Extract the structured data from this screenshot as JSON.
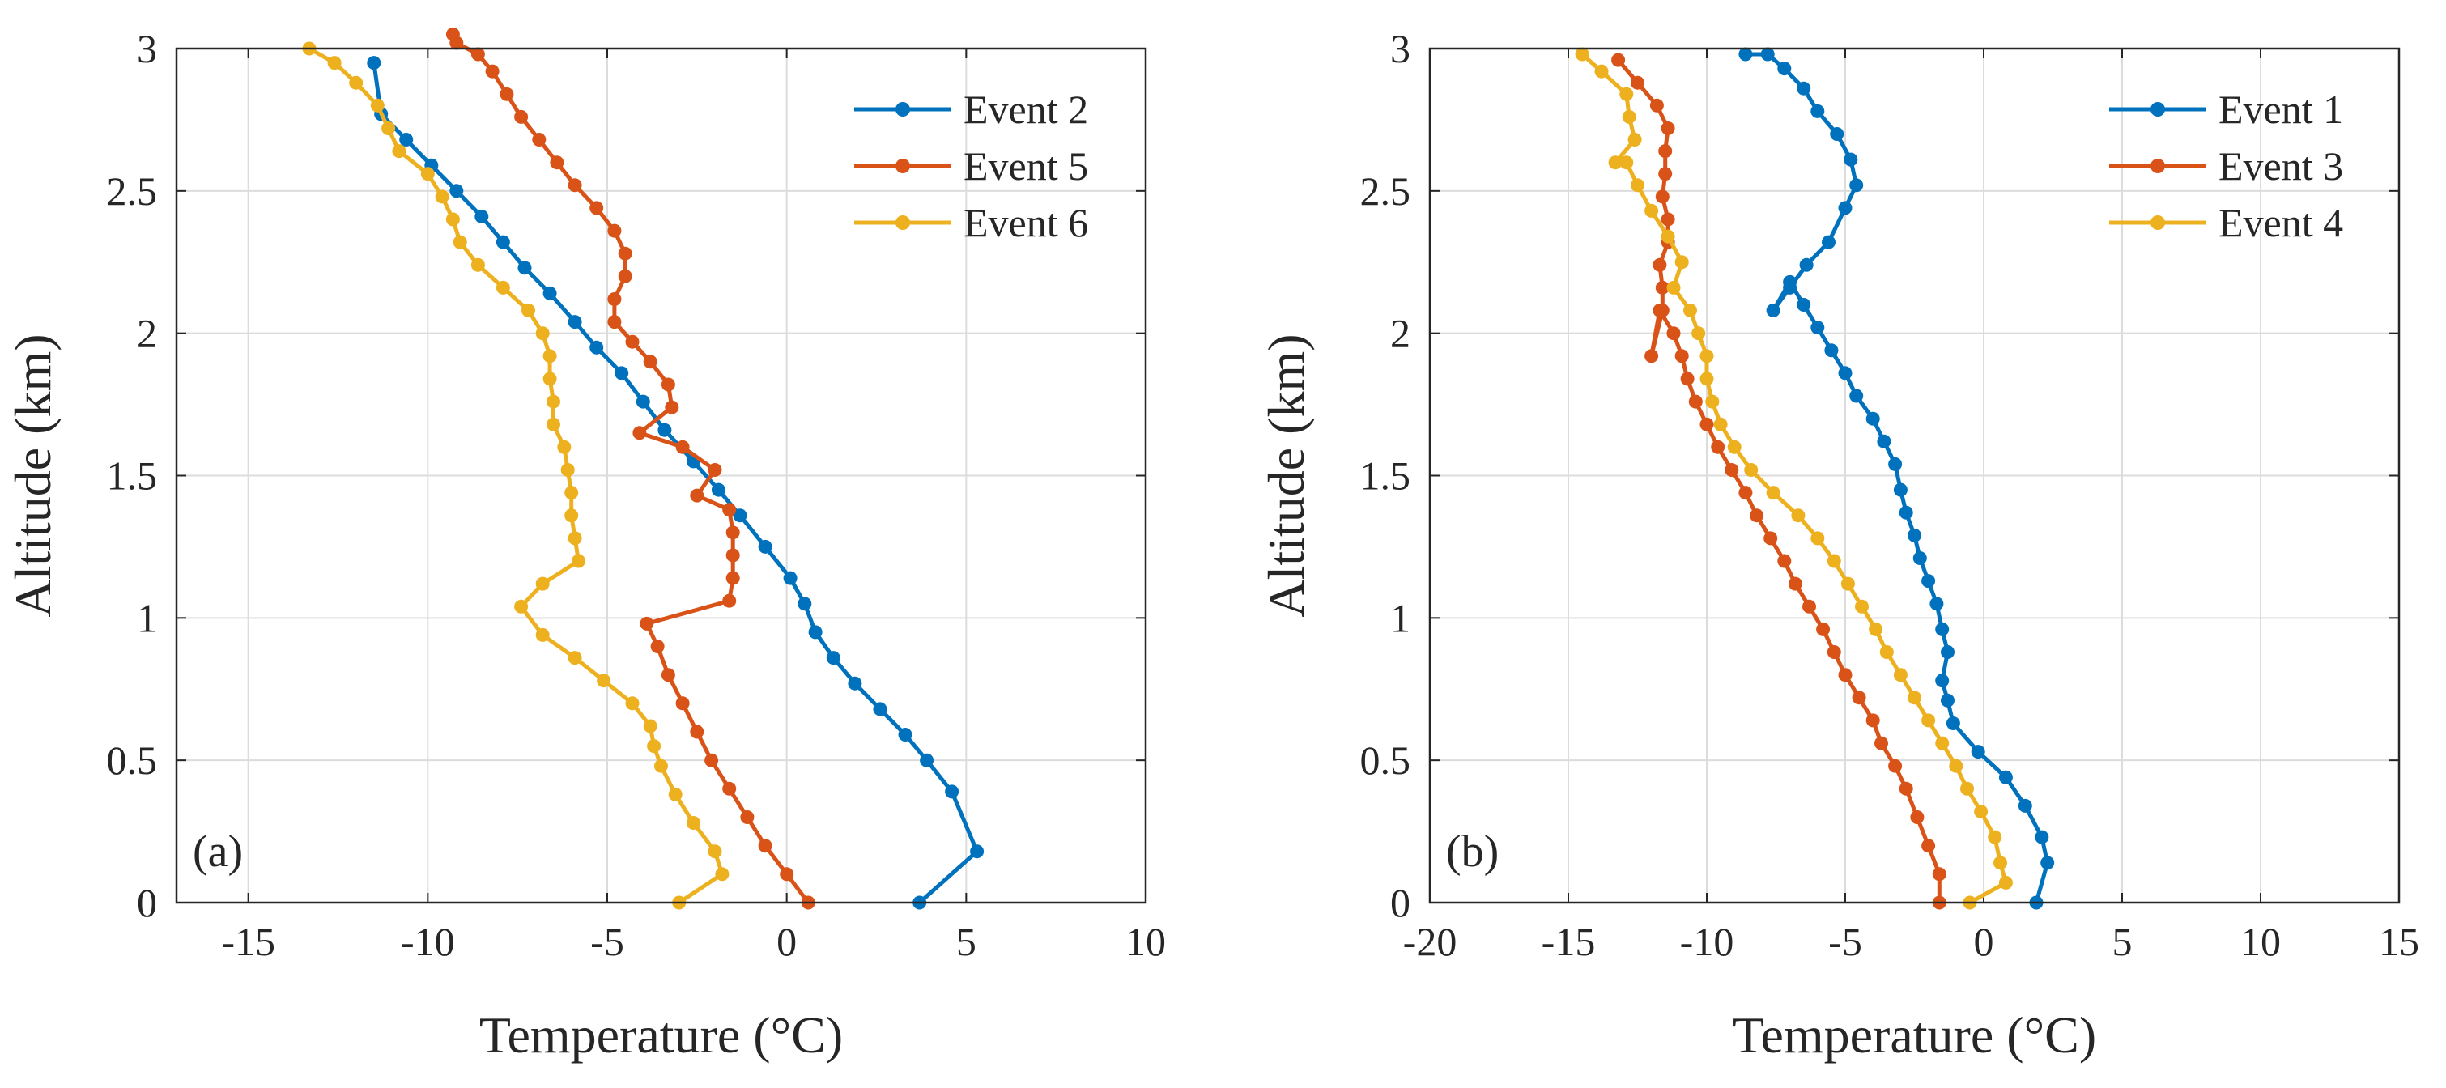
{
  "chart_data": [
    {
      "type": "line",
      "panel_label": "(a)",
      "xlabel": "Temperature (°C)",
      "ylabel": "Altitude (km)",
      "xlim": [
        -17,
        10
      ],
      "ylim": [
        0,
        3
      ],
      "xticks": [
        -15,
        -10,
        -5,
        0,
        5,
        10
      ],
      "xtick_labels": [
        "-15",
        "-10",
        "-5",
        "0",
        "5",
        "10"
      ],
      "yticks": [
        0,
        0.5,
        1,
        1.5,
        2,
        2.5,
        3
      ],
      "ytick_labels": [
        "0",
        "0.5",
        "1",
        "1.5",
        "2",
        "2.5",
        "3"
      ],
      "grid": true,
      "legend_position": "top-right",
      "series": [
        {
          "name": "Event 2",
          "color": "#0072BD",
          "x": [
            3.7,
            5.3,
            4.6,
            3.9,
            3.3,
            2.6,
            1.9,
            1.3,
            0.8,
            0.5,
            0.1,
            -0.6,
            -1.3,
            -1.9,
            -2.6,
            -3.4,
            -4.0,
            -4.6,
            -5.3,
            -5.9,
            -6.6,
            -7.3,
            -7.9,
            -8.5,
            -9.2,
            -9.9,
            -10.6,
            -11.3,
            -11.5
          ],
          "y": [
            0,
            0.18,
            0.39,
            0.5,
            0.59,
            0.68,
            0.77,
            0.86,
            0.95,
            1.05,
            1.14,
            1.25,
            1.36,
            1.45,
            1.55,
            1.66,
            1.76,
            1.86,
            1.95,
            2.04,
            2.14,
            2.23,
            2.32,
            2.41,
            2.5,
            2.59,
            2.68,
            2.77,
            2.95
          ]
        },
        {
          "name": "Event 5",
          "color": "#D95319",
          "x": [
            0.6,
            0.0,
            -0.6,
            -1.1,
            -1.6,
            -2.1,
            -2.5,
            -2.9,
            -3.3,
            -3.6,
            -3.9,
            -1.6,
            -1.5,
            -1.5,
            -1.5,
            -1.6,
            -2.5,
            -2.0,
            -2.9,
            -4.1,
            -3.2,
            -3.3,
            -3.8,
            -4.3,
            -4.8,
            -4.8,
            -4.5,
            -4.5,
            -4.8,
            -5.3,
            -5.9,
            -6.4,
            -6.9,
            -7.4,
            -7.8,
            -8.2,
            -8.6,
            -9.2,
            -9.3
          ],
          "y": [
            0,
            0.1,
            0.2,
            0.3,
            0.4,
            0.5,
            0.6,
            0.7,
            0.8,
            0.9,
            0.98,
            1.06,
            1.14,
            1.22,
            1.3,
            1.38,
            1.43,
            1.52,
            1.6,
            1.65,
            1.74,
            1.82,
            1.9,
            1.97,
            2.04,
            2.12,
            2.2,
            2.28,
            2.36,
            2.44,
            2.52,
            2.6,
            2.68,
            2.76,
            2.84,
            2.92,
            2.98,
            3.02,
            3.05
          ]
        },
        {
          "name": "Event 6",
          "color": "#EDB120",
          "x": [
            -3.0,
            -1.8,
            -2.0,
            -2.6,
            -3.1,
            -3.5,
            -3.7,
            -3.8,
            -4.3,
            -5.1,
            -5.9,
            -6.8,
            -7.4,
            -6.8,
            -5.8,
            -5.9,
            -6.0,
            -6.0,
            -6.1,
            -6.2,
            -6.5,
            -6.5,
            -6.6,
            -6.6,
            -6.8,
            -7.2,
            -7.9,
            -8.6,
            -9.1,
            -9.3,
            -9.6,
            -10.0,
            -10.8,
            -11.1,
            -11.4,
            -12.0,
            -12.6,
            -13.3
          ],
          "y": [
            0,
            0.1,
            0.18,
            0.28,
            0.38,
            0.48,
            0.55,
            0.62,
            0.7,
            0.78,
            0.86,
            0.94,
            1.04,
            1.12,
            1.2,
            1.28,
            1.36,
            1.44,
            1.52,
            1.6,
            1.68,
            1.76,
            1.84,
            1.92,
            2.0,
            2.08,
            2.16,
            2.24,
            2.32,
            2.4,
            2.48,
            2.56,
            2.64,
            2.72,
            2.8,
            2.88,
            2.95,
            3.0
          ]
        }
      ]
    },
    {
      "type": "line",
      "panel_label": "(b)",
      "xlabel": "Temperature (°C)",
      "ylabel": "Altitude (km)",
      "xlim": [
        -20,
        15
      ],
      "ylim": [
        0,
        3
      ],
      "xticks": [
        -20,
        -15,
        -10,
        -5,
        0,
        5,
        10,
        15
      ],
      "xtick_labels": [
        "-20",
        "-15",
        "-10",
        "-5",
        "0",
        "5",
        "10",
        "15"
      ],
      "yticks": [
        0,
        0.5,
        1,
        1.5,
        2,
        2.5,
        3
      ],
      "ytick_labels": [
        "0",
        "0.5",
        "1",
        "1.5",
        "2",
        "2.5",
        "3"
      ],
      "grid": true,
      "legend_position": "top-right",
      "series": [
        {
          "name": "Event 1",
          "color": "#0072BD",
          "x": [
            1.9,
            2.3,
            2.1,
            1.5,
            0.8,
            -0.2,
            -1.1,
            -1.3,
            -1.5,
            -1.3,
            -1.5,
            -1.7,
            -2.0,
            -2.3,
            -2.5,
            -2.8,
            -3.0,
            -3.2,
            -3.6,
            -4.0,
            -4.6,
            -5.0,
            -5.5,
            -6.0,
            -6.5,
            -7.0,
            -7.6,
            -7.0,
            -6.4,
            -5.6,
            -5.0,
            -4.6,
            -4.8,
            -5.3,
            -6.0,
            -6.5,
            -7.2,
            -7.8,
            -8.6
          ],
          "y": [
            0,
            0.14,
            0.23,
            0.34,
            0.44,
            0.53,
            0.63,
            0.71,
            0.78,
            0.88,
            0.96,
            1.05,
            1.13,
            1.21,
            1.29,
            1.37,
            1.45,
            1.54,
            1.62,
            1.7,
            1.78,
            1.86,
            1.94,
            2.02,
            2.1,
            2.18,
            2.08,
            2.16,
            2.24,
            2.32,
            2.44,
            2.52,
            2.61,
            2.7,
            2.78,
            2.86,
            2.93,
            2.98,
            2.98
          ]
        },
        {
          "name": "Event 3",
          "color": "#D95319",
          "x": [
            -1.6,
            -1.6,
            -2.0,
            -2.4,
            -2.8,
            -3.2,
            -3.7,
            -4.0,
            -4.5,
            -5.0,
            -5.4,
            -5.8,
            -6.3,
            -6.8,
            -7.2,
            -7.7,
            -8.2,
            -8.6,
            -9.1,
            -9.6,
            -10.0,
            -10.4,
            -10.7,
            -10.9,
            -11.2,
            -11.7,
            -12.0,
            -11.6,
            -11.6,
            -11.7,
            -11.4,
            -11.4,
            -11.6,
            -11.5,
            -11.5,
            -11.4,
            -11.8,
            -12.5,
            -13.2
          ],
          "y": [
            0,
            0.1,
            0.2,
            0.3,
            0.4,
            0.48,
            0.56,
            0.64,
            0.72,
            0.8,
            0.88,
            0.96,
            1.04,
            1.12,
            1.2,
            1.28,
            1.36,
            1.44,
            1.52,
            1.6,
            1.68,
            1.76,
            1.84,
            1.92,
            2.0,
            2.08,
            1.92,
            2.08,
            2.16,
            2.24,
            2.32,
            2.4,
            2.48,
            2.56,
            2.64,
            2.72,
            2.8,
            2.88,
            2.96
          ]
        },
        {
          "name": "Event 4",
          "color": "#EDB120",
          "x": [
            -0.5,
            0.8,
            0.6,
            0.4,
            -0.1,
            -0.6,
            -1.0,
            -1.5,
            -2.0,
            -2.5,
            -3.0,
            -3.5,
            -3.9,
            -4.4,
            -4.9,
            -5.4,
            -6.0,
            -6.7,
            -7.6,
            -8.4,
            -9.0,
            -9.5,
            -9.8,
            -10.0,
            -10.0,
            -10.3,
            -10.6,
            -11.2,
            -10.9,
            -11.4,
            -12.0,
            -12.5,
            -12.9,
            -13.3,
            -12.6,
            -12.8,
            -12.9,
            -13.8,
            -14.5
          ],
          "y": [
            0,
            0.07,
            0.14,
            0.23,
            0.32,
            0.4,
            0.48,
            0.56,
            0.64,
            0.72,
            0.8,
            0.88,
            0.96,
            1.04,
            1.12,
            1.2,
            1.28,
            1.36,
            1.44,
            1.52,
            1.6,
            1.68,
            1.76,
            1.84,
            1.92,
            2.0,
            2.08,
            2.16,
            2.25,
            2.34,
            2.43,
            2.52,
            2.6,
            2.6,
            2.68,
            2.76,
            2.84,
            2.92,
            2.98
          ]
        }
      ]
    }
  ]
}
